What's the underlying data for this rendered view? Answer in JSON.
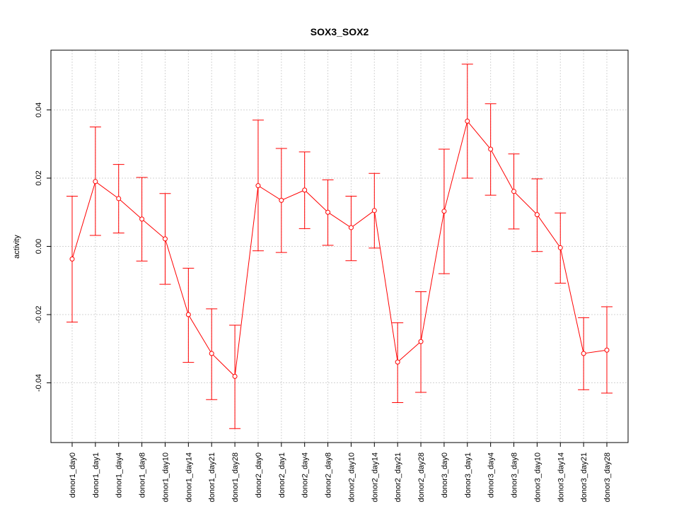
{
  "chart_data": {
    "type": "line",
    "title": "SOX3_SOX2",
    "xlabel": "",
    "ylabel": "activity",
    "ylim": [
      -0.0575,
      0.0575
    ],
    "yticks": [
      -0.04,
      -0.02,
      0.0,
      0.02,
      0.04
    ],
    "ytick_labels": [
      "-0.04",
      "-0.02",
      "0.00",
      "0.02",
      "0.04"
    ],
    "grid": true,
    "series_color": "#ff0000",
    "grid_color": "#d3d3d3",
    "categories": [
      "donor1_day0",
      "donor1_day1",
      "donor1_day4",
      "donor1_day8",
      "donor1_day10",
      "donor1_day14",
      "donor1_day21",
      "donor1_day28",
      "donor2_day0",
      "donor2_day1",
      "donor2_day4",
      "donor2_day8",
      "donor2_day10",
      "donor2_day14",
      "donor2_day21",
      "donor2_day28",
      "donor3_day0",
      "donor3_day1",
      "donor3_day4",
      "donor3_day8",
      "donor3_day10",
      "donor3_day14",
      "donor3_day21",
      "donor3_day28"
    ],
    "values": [
      -0.0037,
      0.019,
      0.014,
      0.008,
      0.0022,
      -0.02,
      -0.0314,
      -0.0381,
      0.0178,
      0.0135,
      0.0165,
      0.01,
      0.0055,
      0.0105,
      -0.0339,
      -0.0279,
      0.0103,
      0.0367,
      0.0285,
      0.0161,
      0.0093,
      -0.0004,
      -0.0314,
      -0.0304
    ],
    "lower": [
      -0.0222,
      0.0032,
      0.0039,
      -0.0043,
      -0.0111,
      -0.034,
      -0.0449,
      -0.0534,
      -0.0013,
      -0.0018,
      0.0052,
      0.0003,
      -0.0042,
      -0.0005,
      -0.0458,
      -0.0428,
      -0.008,
      0.02,
      0.015,
      0.0051,
      -0.0015,
      -0.0108,
      -0.042,
      -0.043
    ],
    "upper": [
      0.0147,
      0.035,
      0.024,
      0.0202,
      0.0155,
      -0.0064,
      -0.0183,
      -0.0231,
      0.037,
      0.0287,
      0.0277,
      0.0195,
      0.0147,
      0.0214,
      -0.0224,
      -0.0133,
      0.0285,
      0.0534,
      0.0418,
      0.0271,
      0.0198,
      0.0098,
      -0.0209,
      -0.0177
    ]
  }
}
